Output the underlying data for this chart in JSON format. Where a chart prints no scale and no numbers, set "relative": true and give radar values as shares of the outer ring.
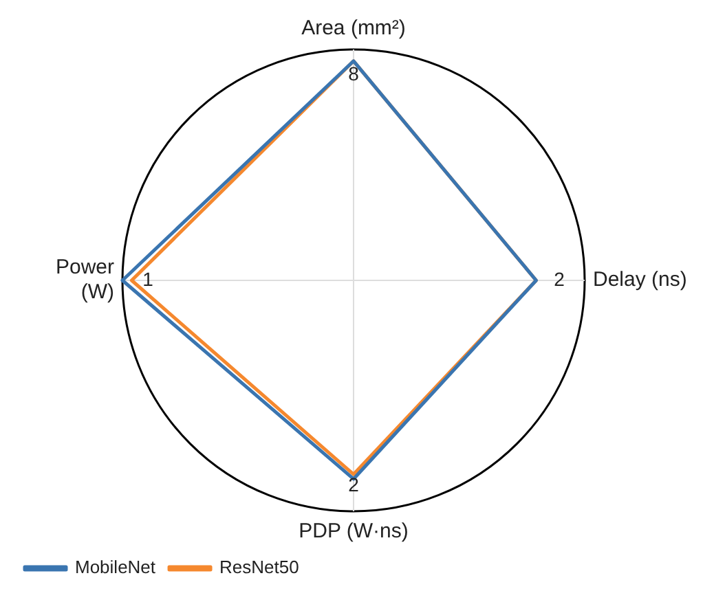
{
  "chart_data": {
    "type": "radar",
    "relative": true,
    "categories": [
      "Area (mm²)",
      "Delay (ns)",
      "PDP (W·ns)",
      "Power\n(W)"
    ],
    "series": [
      {
        "name": "MobileNet",
        "color": "#3a75b0",
        "values": [
          0.95,
          0.79,
          0.86,
          1.0
        ]
      },
      {
        "name": "ResNet50",
        "color": "#f5882e",
        "values": [
          0.95,
          0.79,
          0.84,
          0.96
        ]
      }
    ],
    "annotations": [
      {
        "text": "8",
        "x": "Area (mm²)"
      },
      {
        "text": "2",
        "x": "Delay (ns)"
      },
      {
        "text": "2",
        "x": "PDP (W·ns)"
      },
      {
        "text": "1",
        "x": "Power\n(W)"
      }
    ],
    "grid": "x",
    "legend": "bottom left",
    "marker": "none",
    "line_style": "solid"
  }
}
